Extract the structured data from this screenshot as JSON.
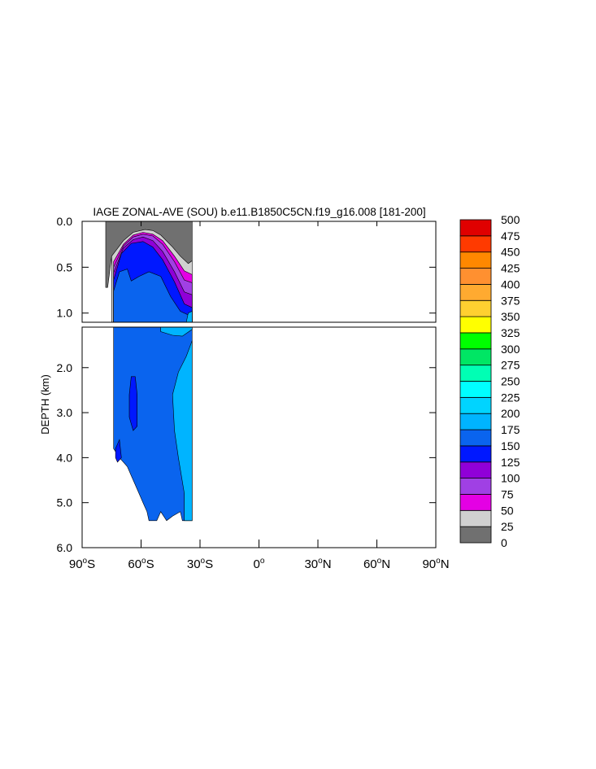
{
  "chart_data": {
    "type": "heatmap",
    "title": "IAGE ZONAL-AVE (SOU) b.e11.B1850C5CN.f19_g16.008 [181-200]",
    "ylabel": "DEPTH (km)",
    "xlabel": "",
    "x_ticks": [
      {
        "value": -90,
        "deg": "90",
        "hemi": "S"
      },
      {
        "value": -60,
        "deg": "60",
        "hemi": "S"
      },
      {
        "value": -30,
        "deg": "30",
        "hemi": "S"
      },
      {
        "value": 0,
        "deg": "0",
        "hemi": ""
      },
      {
        "value": 30,
        "deg": "30",
        "hemi": "N"
      },
      {
        "value": 60,
        "deg": "60",
        "hemi": "N"
      },
      {
        "value": 90,
        "deg": "90",
        "hemi": "N"
      }
    ],
    "xlim": [
      -90,
      90
    ],
    "upper_panel": {
      "ylim": [
        0,
        1.1
      ],
      "y_ticks": [
        {
          "value": 0.0,
          "label": "0.0"
        },
        {
          "value": 0.5,
          "label": "0.5"
        },
        {
          "value": 1.0,
          "label": "1.0"
        }
      ]
    },
    "lower_panel": {
      "ylim": [
        1.1,
        6.0
      ],
      "y_ticks": [
        {
          "value": 2.0,
          "label": "2.0"
        },
        {
          "value": 3.0,
          "label": "3.0"
        },
        {
          "value": 4.0,
          "label": "4.0"
        },
        {
          "value": 5.0,
          "label": "5.0"
        },
        {
          "value": 6.0,
          "label": "6.0"
        }
      ]
    },
    "colorbar": {
      "levels": [
        "0",
        "25",
        "50",
        "75",
        "100",
        "125",
        "150",
        "175",
        "200",
        "225",
        "250",
        "275",
        "300",
        "325",
        "350",
        "375",
        "400",
        "425",
        "450",
        "475",
        "500"
      ],
      "colors": [
        "#707070",
        "#d0d0d0",
        "#e400e4",
        "#a040e4",
        "#9000d8",
        "#0018ff",
        "#0a64ee",
        "#00b4ff",
        "#00d4ff",
        "#00ffff",
        "#00ffb4",
        "#00e664",
        "#00ff00",
        "#ffff00",
        "#ffd030",
        "#ffaa30",
        "#ff9030",
        "#ff8800",
        "#ff3a00",
        "#e00000"
      ]
    },
    "regions": {
      "upper": [
        {
          "value": 12,
          "pts": [
            [
              -78,
              0.0
            ],
            [
              -34,
              0.0
            ],
            [
              -34,
              0.43
            ],
            [
              -36,
              0.46
            ],
            [
              -40,
              0.4
            ],
            [
              -46,
              0.26
            ],
            [
              -52,
              0.15
            ],
            [
              -56,
              0.12
            ],
            [
              -62,
              0.15
            ],
            [
              -68,
              0.23
            ],
            [
              -75,
              0.38
            ],
            [
              -77,
              0.72
            ],
            [
              -78,
              0.72
            ]
          ]
        },
        {
          "value": 35,
          "pts": [
            [
              -75,
              0.38
            ],
            [
              -69,
              0.21
            ],
            [
              -64,
              0.12
            ],
            [
              -58,
              0.09
            ],
            [
              -54,
              0.1
            ],
            [
              -50,
              0.15
            ],
            [
              -44,
              0.28
            ],
            [
              -40,
              0.38
            ],
            [
              -36,
              0.46
            ],
            [
              -34,
              0.43
            ],
            [
              -34,
              1.1
            ],
            [
              -75,
              1.1
            ]
          ]
        },
        {
          "value": 65,
          "pts": [
            [
              -74,
              0.44
            ],
            [
              -69,
              0.25
            ],
            [
              -64,
              0.15
            ],
            [
              -59,
              0.12
            ],
            [
              -54,
              0.14
            ],
            [
              -49,
              0.21
            ],
            [
              -43,
              0.38
            ],
            [
              -38,
              0.54
            ],
            [
              -34,
              0.58
            ],
            [
              -34,
              1.1
            ],
            [
              -74,
              1.1
            ]
          ]
        },
        {
          "value": 88,
          "pts": [
            [
              -74,
              0.5
            ],
            [
              -69,
              0.27
            ],
            [
              -64,
              0.17
            ],
            [
              -59,
              0.14
            ],
            [
              -54,
              0.16
            ],
            [
              -49,
              0.25
            ],
            [
              -43,
              0.44
            ],
            [
              -38,
              0.64
            ],
            [
              -34,
              0.67
            ],
            [
              -34,
              1.1
            ],
            [
              -74,
              1.1
            ]
          ]
        },
        {
          "value": 112,
          "pts": [
            [
              -74,
              0.56
            ],
            [
              -69,
              0.29
            ],
            [
              -64,
              0.2
            ],
            [
              -59,
              0.17
            ],
            [
              -54,
              0.21
            ],
            [
              -49,
              0.33
            ],
            [
              -43,
              0.55
            ],
            [
              -38,
              0.77
            ],
            [
              -34,
              0.8
            ],
            [
              -34,
              1.1
            ],
            [
              -74,
              1.1
            ]
          ]
        },
        {
          "value": 138,
          "pts": [
            [
              -74,
              0.64
            ],
            [
              -70,
              0.35
            ],
            [
              -65,
              0.24
            ],
            [
              -59,
              0.22
            ],
            [
              -54,
              0.28
            ],
            [
              -49,
              0.42
            ],
            [
              -43,
              0.66
            ],
            [
              -38,
              0.9
            ],
            [
              -34,
              0.94
            ],
            [
              -34,
              1.1
            ],
            [
              -74,
              1.1
            ]
          ]
        },
        {
          "value": 162,
          "pts": [
            [
              -74,
              0.76
            ],
            [
              -71,
              0.55
            ],
            [
              -67,
              0.52
            ],
            [
              -65,
              0.65
            ],
            [
              -61,
              0.6
            ],
            [
              -56,
              0.55
            ],
            [
              -50,
              0.6
            ],
            [
              -45,
              0.82
            ],
            [
              -40,
              0.98
            ],
            [
              -34,
              1.04
            ],
            [
              -34,
              1.1
            ],
            [
              -74,
              1.1
            ]
          ]
        },
        {
          "value": 190,
          "pts": [
            [
              -34,
              0.98
            ],
            [
              -34,
              1.1
            ],
            [
              -37,
              1.1
            ],
            [
              -36,
              1.0
            ]
          ]
        }
      ],
      "lower": [
        {
          "value": 162,
          "pts": [
            [
              -74,
              1.1
            ],
            [
              -34,
              1.1
            ],
            [
              -34,
              5.4
            ],
            [
              -39,
              5.4
            ],
            [
              -40,
              5.2
            ],
            [
              -44,
              5.3
            ],
            [
              -47,
              5.4
            ],
            [
              -50,
              5.2
            ],
            [
              -52,
              5.4
            ],
            [
              -56,
              5.4
            ],
            [
              -57,
              5.2
            ],
            [
              -59,
              5.0
            ],
            [
              -61,
              4.8
            ],
            [
              -63,
              4.6
            ],
            [
              -65,
              4.4
            ],
            [
              -67,
              4.2
            ],
            [
              -69,
              4.1
            ],
            [
              -71,
              4.0
            ],
            [
              -74,
              3.8
            ]
          ]
        },
        {
          "value": 190,
          "pts": [
            [
              -50,
              1.1
            ],
            [
              -34,
              1.1
            ],
            [
              -34,
              1.15
            ],
            [
              -39,
              1.3
            ],
            [
              -44,
              1.28
            ],
            [
              -50,
              1.2
            ]
          ]
        },
        {
          "value": 190,
          "pts": [
            [
              -34,
              1.4
            ],
            [
              -34,
              5.4
            ],
            [
              -38,
              5.4
            ],
            [
              -38,
              4.8
            ],
            [
              -41,
              4.0
            ],
            [
              -43,
              3.4
            ],
            [
              -44,
              2.6
            ],
            [
              -41,
              2.1
            ],
            [
              -37,
              1.75
            ],
            [
              -34,
              1.4
            ]
          ]
        },
        {
          "value": 138,
          "pts": [
            [
              -65,
              2.2
            ],
            [
              -63,
              2.2
            ],
            [
              -62,
              2.6
            ],
            [
              -62,
              3.3
            ],
            [
              -64,
              3.4
            ],
            [
              -66,
              3.1
            ],
            [
              -66,
              2.6
            ]
          ]
        },
        {
          "value": 138,
          "pts": [
            [
              -73,
              3.8
            ],
            [
              -71,
              3.6
            ],
            [
              -70,
              4.0
            ],
            [
              -72,
              4.1
            ],
            [
              -73,
              4.0
            ]
          ]
        }
      ]
    }
  }
}
